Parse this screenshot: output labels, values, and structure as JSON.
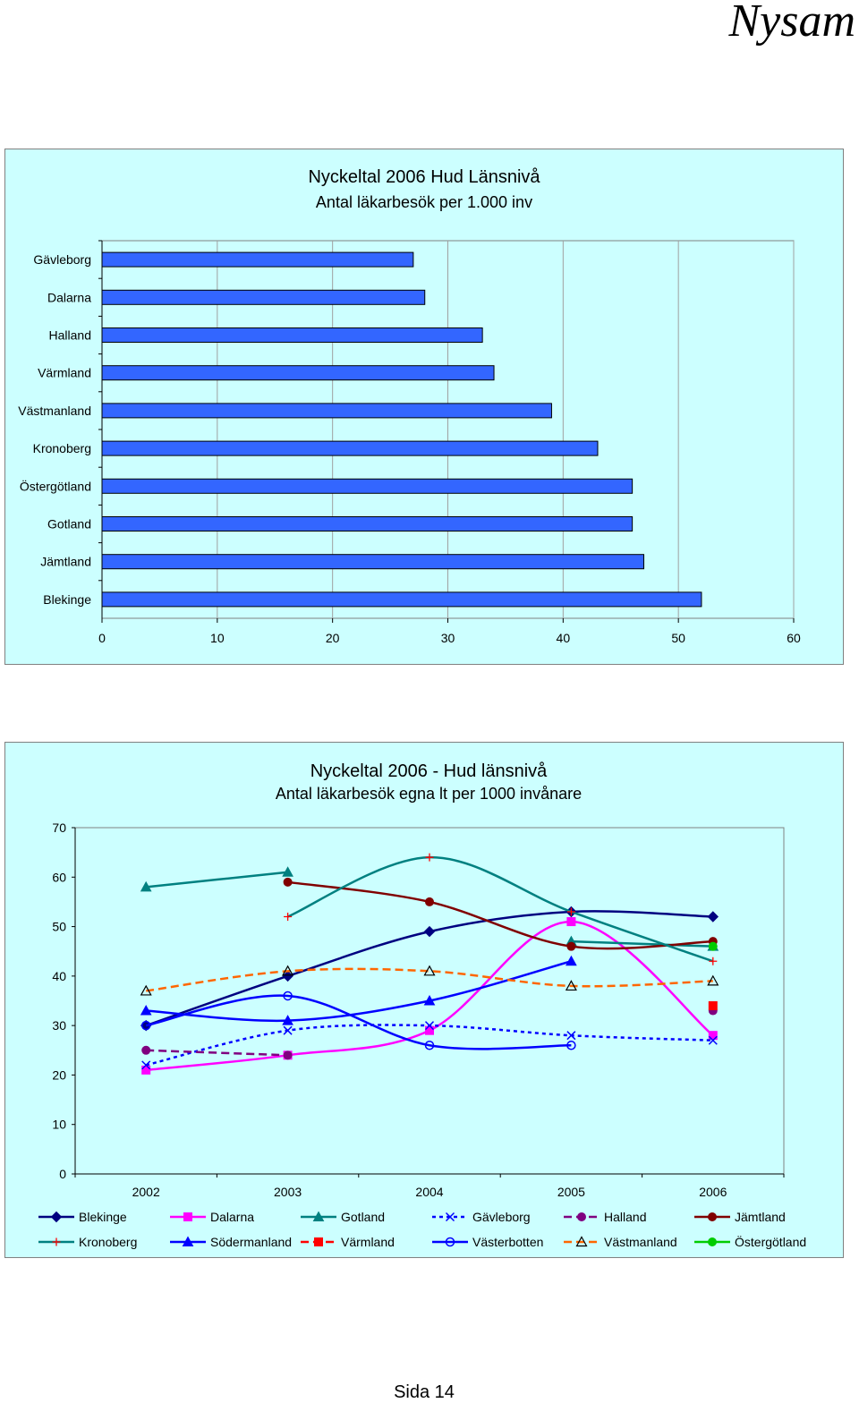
{
  "header": {
    "brand": "Nysam"
  },
  "footer": {
    "page_label": "Sida 14"
  },
  "chart_data": [
    {
      "type": "bar",
      "orientation": "horizontal",
      "title": "Nyckeltal 2006  Hud  Länsnivå",
      "subtitle": "Antal läkarbesök per 1.000 inv",
      "categories": [
        "Gävleborg",
        "Dalarna",
        "Halland",
        "Värmland",
        "Västmanland",
        "Kronoberg",
        "Östergötland",
        "Gotland",
        "Jämtland",
        "Blekinge"
      ],
      "values": [
        27,
        28,
        33,
        34,
        39,
        43,
        46,
        46,
        47,
        52
      ],
      "xlim": [
        0,
        60
      ],
      "xticks": [
        0,
        10,
        20,
        30,
        40,
        50,
        60
      ],
      "grid": true,
      "bar_color": "#3366ff",
      "background": "#ccffff"
    },
    {
      "type": "line",
      "title": "Nyckeltal 2006  -  Hud länsnivå",
      "subtitle": "Antal läkarbesök egna lt per 1000 invånare",
      "x": [
        "2002",
        "2003",
        "2004",
        "2005",
        "2006"
      ],
      "ylim": [
        0,
        70
      ],
      "yticks": [
        0,
        10,
        20,
        30,
        40,
        50,
        60,
        70
      ],
      "grid": false,
      "legend_position": "bottom",
      "background": "#ccffff",
      "series": [
        {
          "name": "Blekinge",
          "values": [
            30,
            40,
            49,
            53,
            52
          ],
          "color": "#000080",
          "marker": "diamond",
          "dash": "solid"
        },
        {
          "name": "Dalarna",
          "values": [
            21,
            24,
            29,
            51,
            28
          ],
          "color": "#ff00ff",
          "marker": "square",
          "dash": "solid"
        },
        {
          "name": "Gotland",
          "values": [
            58,
            61,
            null,
            47,
            46
          ],
          "color": "#008080",
          "marker": "triangle",
          "dash": "solid"
        },
        {
          "name": "Gävleborg",
          "values": [
            22,
            29,
            30,
            28,
            27
          ],
          "color": "#0000ff",
          "marker": "x",
          "dash": "dotted"
        },
        {
          "name": "Halland",
          "values": [
            25,
            24,
            null,
            null,
            33
          ],
          "color": "#800080",
          "marker": "circle",
          "dash": "dashed"
        },
        {
          "name": "Jämtland",
          "values": [
            null,
            59,
            55,
            46,
            47
          ],
          "color": "#800000",
          "marker": "circle",
          "dash": "solid"
        },
        {
          "name": "Kronoberg",
          "values": [
            null,
            52,
            64,
            53,
            43
          ],
          "color": "#008080",
          "marker": "plus",
          "dash": "solid"
        },
        {
          "name": "Södermanland",
          "values": [
            33,
            31,
            35,
            43,
            null
          ],
          "color": "#0000ff",
          "marker": "triangle",
          "dash": "solid"
        },
        {
          "name": "Värmland",
          "values": [
            null,
            null,
            null,
            null,
            34
          ],
          "color": "#ff0000",
          "marker": "square",
          "dash": "dashed"
        },
        {
          "name": "Västerbotten",
          "values": [
            30,
            36,
            26,
            26,
            null
          ],
          "color": "#0000ff",
          "marker": "circle-open",
          "dash": "solid"
        },
        {
          "name": "Västmanland",
          "values": [
            37,
            41,
            41,
            38,
            39
          ],
          "color": "#ff6600",
          "marker": "triangle-open",
          "dash": "dashed"
        },
        {
          "name": "Östergötland",
          "values": [
            null,
            null,
            null,
            null,
            46
          ],
          "color": "#00cc00",
          "marker": "circle",
          "dash": "solid"
        }
      ]
    }
  ]
}
